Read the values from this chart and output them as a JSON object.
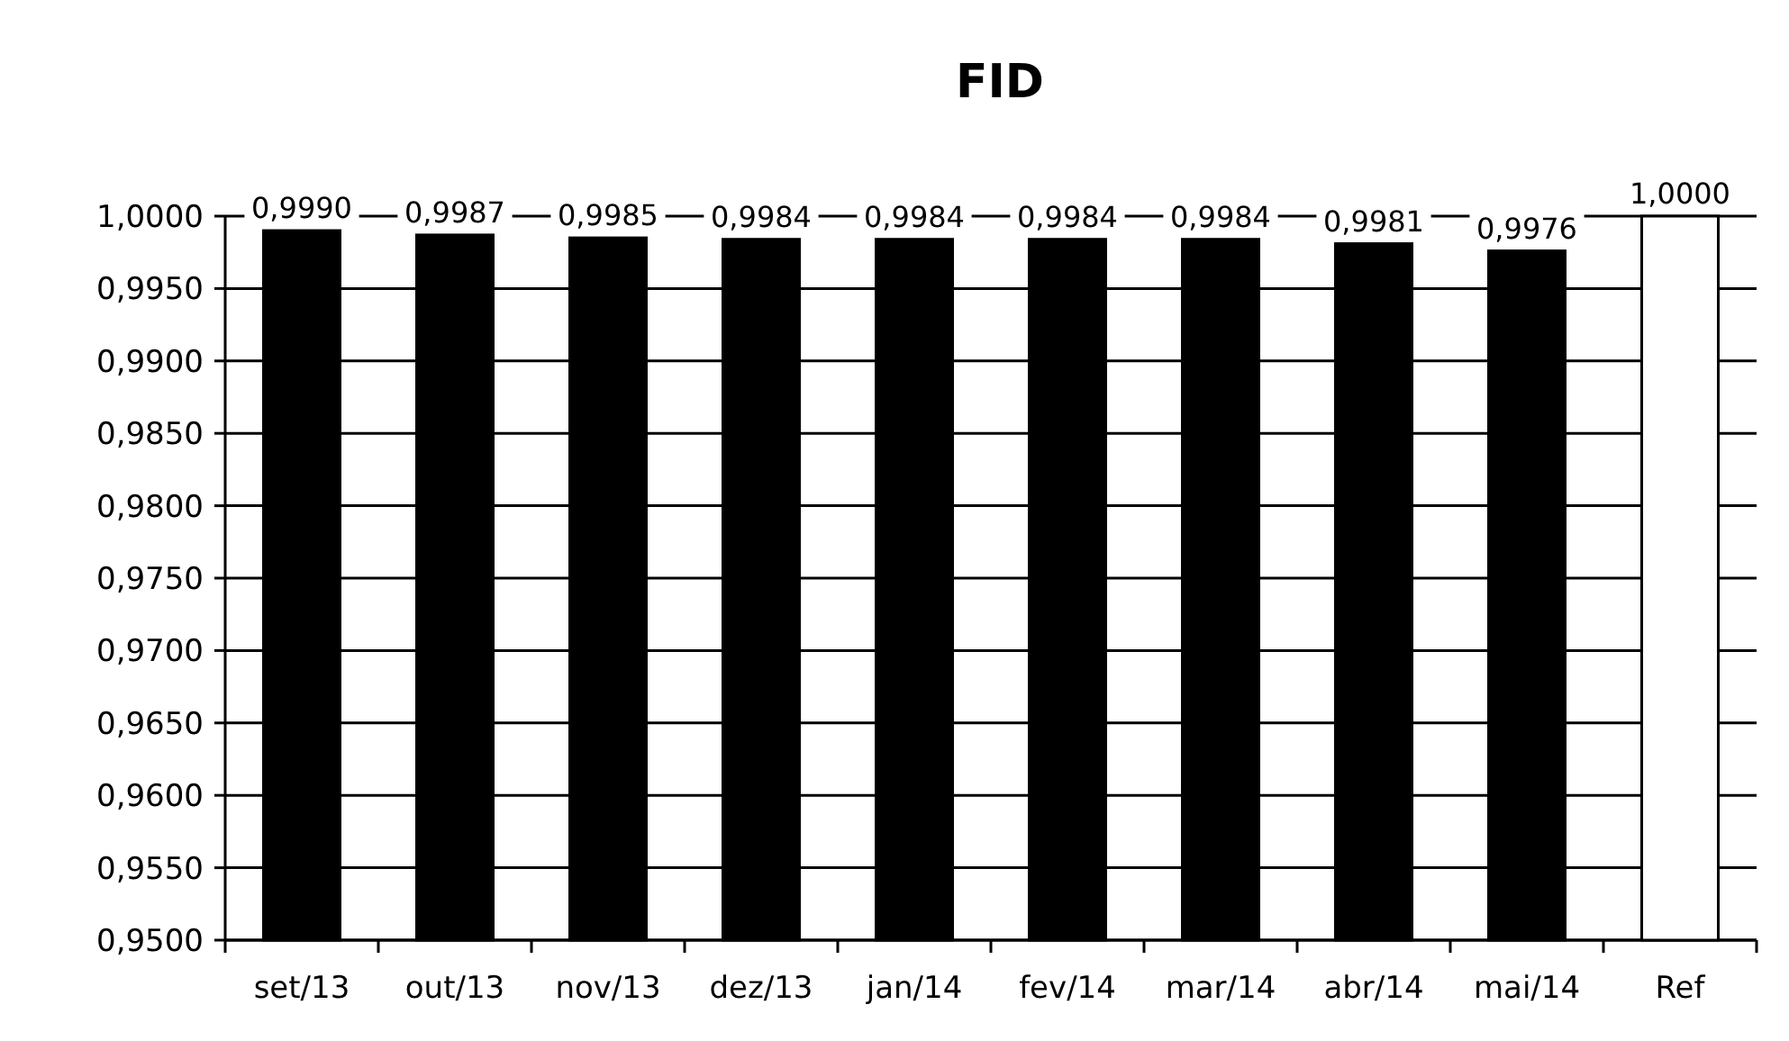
{
  "chart_data": {
    "type": "bar",
    "title": "FID",
    "categories": [
      "set/13",
      "out/13",
      "nov/13",
      "dez/13",
      "jan/14",
      "fev/14",
      "mar/14",
      "abr/14",
      "mai/14",
      "Ref"
    ],
    "values": [
      0.999,
      0.9987,
      0.9985,
      0.9984,
      0.9984,
      0.9984,
      0.9984,
      0.9981,
      0.9976,
      1.0
    ],
    "colors": [
      "#000000",
      "#000000",
      "#000000",
      "#000000",
      "#000000",
      "#000000",
      "#000000",
      "#000000",
      "#000000",
      "#ffffff"
    ],
    "value_labels": [
      "0,9990",
      "0,9987",
      "0,9985",
      "0,9984",
      "0,9984",
      "0,9984",
      "0,9984",
      "0,9981",
      "0,9976",
      "1,0000"
    ],
    "ylim": [
      0.95,
      1.0
    ],
    "yticks": [
      {
        "value": 0.95,
        "label": "0,9500"
      },
      {
        "value": 0.955,
        "label": "0,9550"
      },
      {
        "value": 0.96,
        "label": "0,9600"
      },
      {
        "value": 0.965,
        "label": "0,9650"
      },
      {
        "value": 0.97,
        "label": "0,9700"
      },
      {
        "value": 0.975,
        "label": "0,9750"
      },
      {
        "value": 0.98,
        "label": "0,9800"
      },
      {
        "value": 0.985,
        "label": "0,9850"
      },
      {
        "value": 0.99,
        "label": "0,9900"
      },
      {
        "value": 0.995,
        "label": "0,9950"
      },
      {
        "value": 1.0,
        "label": "1,0000"
      }
    ],
    "grid": "y"
  }
}
